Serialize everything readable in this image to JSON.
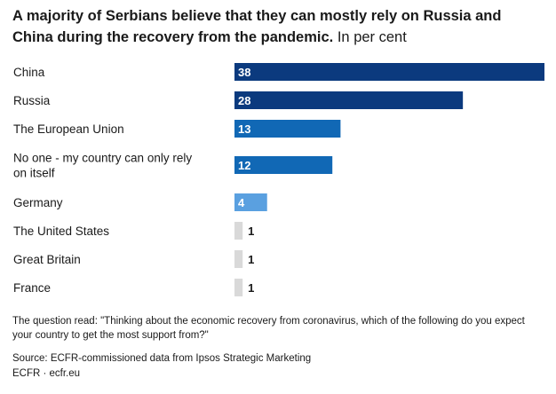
{
  "title_bold": "A majority of Serbians believe that they can mostly rely on Russia and China during the recovery from the pandemic.",
  "title_unit": "In per cent",
  "notes": {
    "question": "The question read: \"Thinking about the economic recovery from coronavirus, which of the following do you expect your country to get the most support from?\"",
    "source": "Source: ECFR-commissioned data from Ipsos Strategic Marketing",
    "credit": "ECFR · ecfr.eu"
  },
  "chart_data": {
    "type": "bar",
    "orientation": "horizontal",
    "title": "A majority of Serbians believe that they can mostly rely on Russia and China during the recovery from the pandemic.",
    "xlim": [
      0,
      38
    ],
    "grid": false,
    "categories": [
      [
        "China"
      ],
      [
        "Russia"
      ],
      [
        "The European Union"
      ],
      [
        "No one - my country can only rely",
        "on itself"
      ],
      [
        "Germany"
      ],
      [
        "The United States"
      ],
      [
        "Great Britain"
      ],
      [
        "France"
      ]
    ],
    "values": [
      38,
      28,
      13,
      12,
      4,
      1,
      1,
      1
    ],
    "colors": [
      "#0b3a7e",
      "#0b3a7e",
      "#1168b5",
      "#1168b5",
      "#5aa0e0",
      "#d9d9d9",
      "#d9d9d9",
      "#d9d9d9"
    ]
  }
}
